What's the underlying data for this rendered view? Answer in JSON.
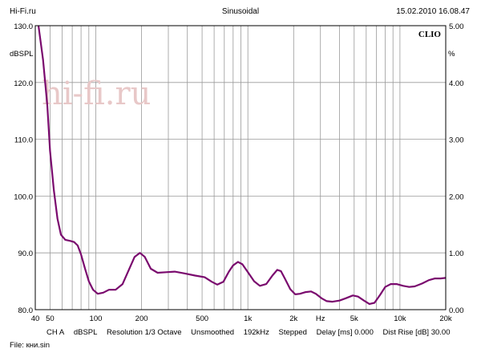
{
  "header": {
    "left": "Hi-Fi.ru",
    "center": "Sinusoidal",
    "right": "15.02.2010 16.08.47"
  },
  "watermark": "hi-fi.ru",
  "brand": "CLIO",
  "chart_data": {
    "type": "line",
    "xscale": "log",
    "xlim": [
      40,
      20000
    ],
    "ylim_left": [
      80,
      130
    ],
    "ylim_right": [
      0,
      5
    ],
    "ylabel_left": "dBSPL",
    "ylabel_right": "%",
    "grid": true,
    "left_ticks": [
      "130.0",
      "120.0",
      "110.0",
      "100.0",
      "90.0",
      "80.0"
    ],
    "right_ticks": [
      "5.00",
      "4.00",
      "3.00",
      "2.00",
      "1.00",
      "0.00"
    ],
    "x_ticks": [
      {
        "v": 40,
        "label": "40"
      },
      {
        "v": 50,
        "label": "50"
      },
      {
        "v": 100,
        "label": "100"
      },
      {
        "v": 200,
        "label": "200"
      },
      {
        "v": 500,
        "label": "500"
      },
      {
        "v": 1000,
        "label": "1k"
      },
      {
        "v": 2000,
        "label": "2k"
      },
      {
        "v": 5000,
        "label": "5k"
      },
      {
        "v": 10000,
        "label": "10k"
      },
      {
        "v": 20000,
        "label": "20k"
      }
    ],
    "x_unit": "Hz",
    "series": [
      {
        "color": "#7a0a6e",
        "points": [
          [
            42,
            130
          ],
          [
            45,
            124
          ],
          [
            48,
            116
          ],
          [
            50,
            108
          ],
          [
            53,
            101
          ],
          [
            56,
            96
          ],
          [
            59,
            93.2
          ],
          [
            63,
            92.3
          ],
          [
            68,
            92.1
          ],
          [
            72,
            91.9
          ],
          [
            76,
            91.3
          ],
          [
            80,
            89.7
          ],
          [
            85,
            87.2
          ],
          [
            90,
            85.0
          ],
          [
            96,
            83.5
          ],
          [
            103,
            82.8
          ],
          [
            112,
            83.0
          ],
          [
            122,
            83.5
          ],
          [
            135,
            83.5
          ],
          [
            150,
            84.5
          ],
          [
            165,
            87.0
          ],
          [
            180,
            89.3
          ],
          [
            195,
            90.0
          ],
          [
            210,
            89.3
          ],
          [
            230,
            87.2
          ],
          [
            255,
            86.5
          ],
          [
            290,
            86.6
          ],
          [
            330,
            86.7
          ],
          [
            380,
            86.4
          ],
          [
            450,
            86.0
          ],
          [
            520,
            85.7
          ],
          [
            580,
            84.9
          ],
          [
            630,
            84.4
          ],
          [
            690,
            84.9
          ],
          [
            750,
            86.7
          ],
          [
            800,
            87.8
          ],
          [
            860,
            88.4
          ],
          [
            920,
            88.0
          ],
          [
            1000,
            86.6
          ],
          [
            1100,
            85.0
          ],
          [
            1200,
            84.2
          ],
          [
            1320,
            84.5
          ],
          [
            1450,
            86.0
          ],
          [
            1560,
            87.0
          ],
          [
            1650,
            86.8
          ],
          [
            1750,
            85.5
          ],
          [
            1900,
            83.6
          ],
          [
            2050,
            82.7
          ],
          [
            2200,
            82.8
          ],
          [
            2400,
            83.1
          ],
          [
            2600,
            83.2
          ],
          [
            2800,
            82.8
          ],
          [
            3050,
            82.0
          ],
          [
            3300,
            81.5
          ],
          [
            3600,
            81.4
          ],
          [
            4000,
            81.6
          ],
          [
            4400,
            82.0
          ],
          [
            4900,
            82.5
          ],
          [
            5300,
            82.3
          ],
          [
            5800,
            81.6
          ],
          [
            6300,
            81.0
          ],
          [
            6800,
            81.2
          ],
          [
            7400,
            82.6
          ],
          [
            8000,
            84.0
          ],
          [
            8700,
            84.5
          ],
          [
            9500,
            84.5
          ],
          [
            10500,
            84.2
          ],
          [
            11500,
            84.0
          ],
          [
            12500,
            84.1
          ],
          [
            14000,
            84.6
          ],
          [
            15500,
            85.2
          ],
          [
            17000,
            85.5
          ],
          [
            18500,
            85.5
          ],
          [
            20000,
            85.6
          ]
        ]
      }
    ]
  },
  "settings": [
    "CH A",
    "dBSPL",
    "Resolution 1/3 Octave",
    "Unsmoothed",
    "192kHz",
    "Stepped",
    "Delay [ms] 0.000",
    "Dist Rise [dB] 30.00"
  ],
  "file": "File: кни.sin"
}
